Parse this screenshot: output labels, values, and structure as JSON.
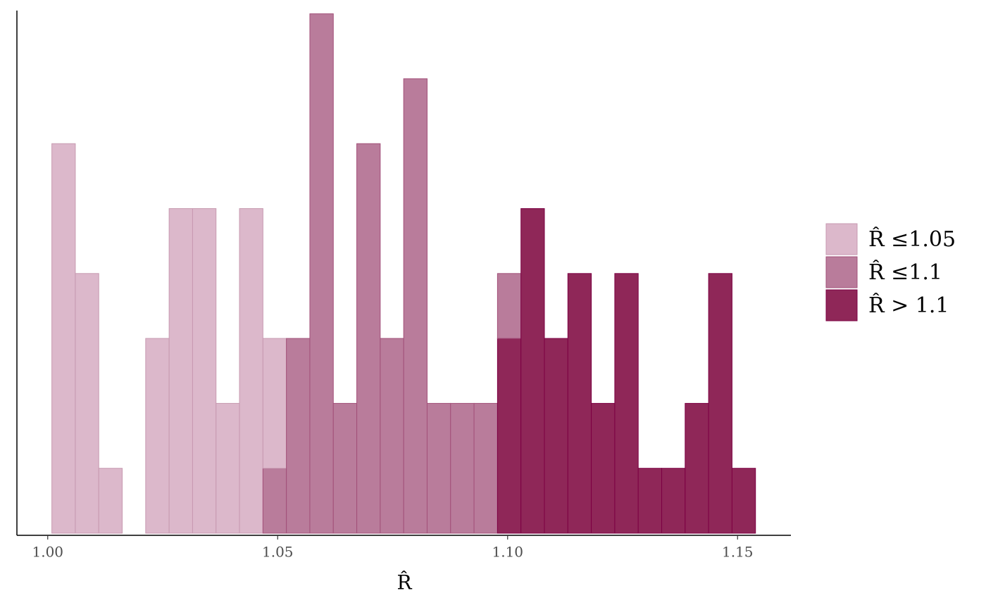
{
  "chart_data": {
    "type": "histogram",
    "x_label": "R̂",
    "bins": [
      1.0009,
      1.006,
      1.0111,
      1.0162,
      1.0213,
      1.0264,
      1.0315,
      1.0366,
      1.0417,
      1.0468,
      1.0519,
      1.057,
      1.0621,
      1.0672,
      1.0723,
      1.0774,
      1.0825,
      1.0876,
      1.0927,
      1.0978,
      1.1029,
      1.108,
      1.1131,
      1.1182,
      1.1233,
      1.1284,
      1.1335,
      1.1386,
      1.1437,
      1.1488,
      1.1539
    ],
    "series": [
      {
        "name": "R̂ ≤1.05",
        "color": "#dcb8cb",
        "edge": "#c799b0",
        "values": [
          6,
          4,
          1,
          0,
          3,
          5,
          5,
          2,
          5,
          2,
          0,
          0,
          0,
          0,
          0,
          0,
          0,
          0,
          0,
          0,
          0,
          0,
          0,
          0,
          0,
          0,
          0,
          0,
          0,
          0
        ]
      },
      {
        "name": "R̂ ≤1.1",
        "color": "#b97c9b",
        "edge": "#a25079",
        "values": [
          0,
          0,
          0,
          0,
          0,
          0,
          0,
          0,
          0,
          1,
          3,
          8,
          2,
          6,
          3,
          7,
          2,
          2,
          2,
          1,
          0,
          0,
          0,
          0,
          0,
          0,
          0,
          0,
          0,
          0
        ]
      },
      {
        "name": "R̂ > 1.1",
        "color": "#8f2758",
        "edge": "#7c0043",
        "values": [
          0,
          0,
          0,
          0,
          0,
          0,
          0,
          0,
          0,
          0,
          0,
          0,
          0,
          0,
          0,
          0,
          0,
          0,
          0,
          3,
          5,
          3,
          4,
          2,
          4,
          1,
          1,
          2,
          4,
          1
        ]
      }
    ],
    "xlim": [
      0.9933,
      1.1616
    ],
    "ylim": [
      0,
      8.05
    ],
    "xticks": [
      {
        "value": 1.0,
        "label": "1.00"
      },
      1.05,
      {
        "value": 1.1,
        "label": "1.10"
      },
      1.15
    ],
    "legend": "right"
  }
}
